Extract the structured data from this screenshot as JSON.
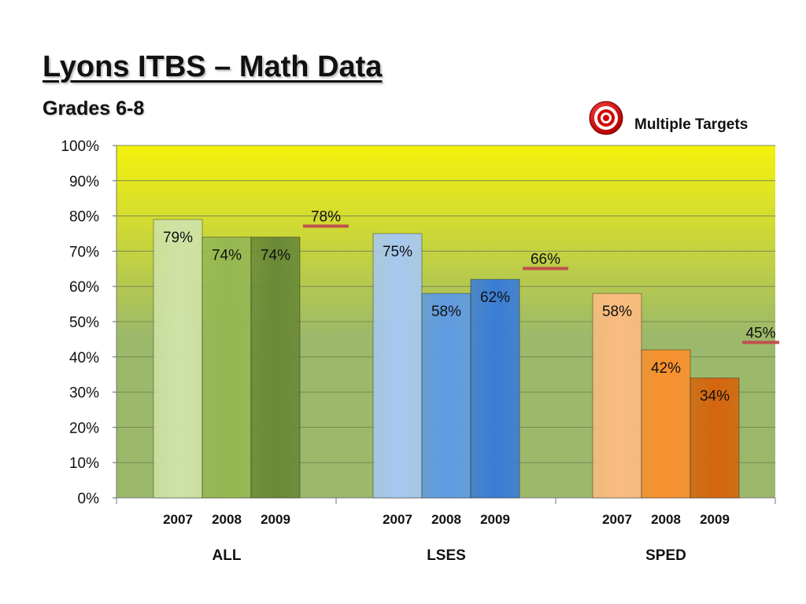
{
  "slide": {
    "title": "Lyons ITBS – Math Data",
    "subtitle": "Grades 6-8"
  },
  "legend": {
    "target_label": "Multiple Targets",
    "target_icon": "bullseye-target-icon"
  },
  "chart_data": {
    "type": "bar",
    "title": "",
    "xlabel": "",
    "ylabel": "",
    "ylim": [
      0,
      100
    ],
    "yticks": [
      "0%",
      "10%",
      "20%",
      "30%",
      "40%",
      "50%",
      "60%",
      "70%",
      "80%",
      "90%",
      "100%"
    ],
    "grid": true,
    "groups": [
      {
        "name": "ALL",
        "categories": [
          "2007",
          "2008",
          "2009"
        ],
        "values": [
          79,
          74,
          74
        ],
        "labels": [
          "79%",
          "74%",
          "74%"
        ],
        "colors": [
          "#cfe2a6",
          "#95b853",
          "#6a8a38"
        ],
        "target": 78,
        "target_label": "78%"
      },
      {
        "name": "LSES",
        "categories": [
          "2007",
          "2008",
          "2009"
        ],
        "values": [
          75,
          58,
          62
        ],
        "labels": [
          "75%",
          "58%",
          "62%"
        ],
        "colors": [
          "#a7c8f0",
          "#5f9be2",
          "#3b7dd7"
        ],
        "target": 66,
        "target_label": "66%"
      },
      {
        "name": "SPED",
        "categories": [
          "2007",
          "2008",
          "2009"
        ],
        "values": [
          58,
          42,
          34
        ],
        "labels": [
          "58%",
          "42%",
          "34%"
        ],
        "colors": [
          "#fbbb80",
          "#f8902f",
          "#d5660e"
        ],
        "target": 45,
        "target_label": "45%"
      }
    ],
    "colors": {
      "plot_top": "#f5f20c",
      "plot_bottom": "#9bb86b",
      "target_line": "#c0504d"
    }
  }
}
